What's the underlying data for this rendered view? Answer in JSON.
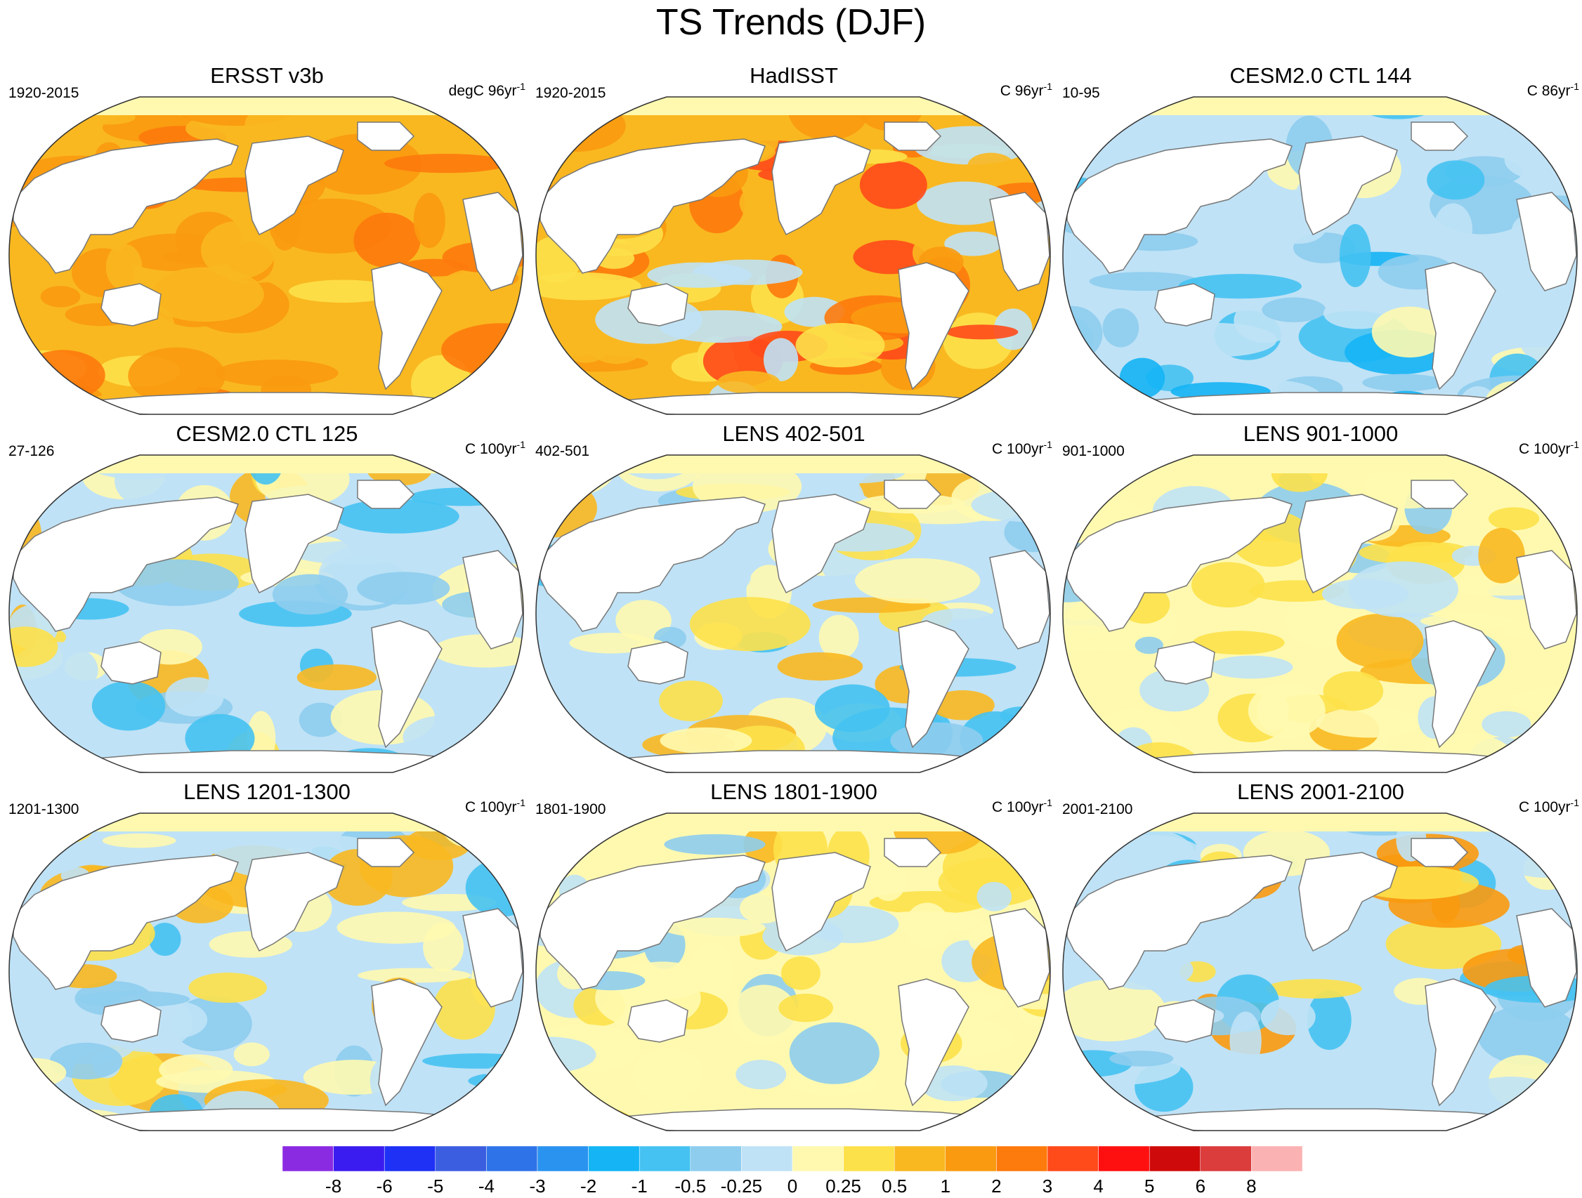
{
  "title": "TS Trends (DJF)",
  "panels": [
    {
      "title": "ERSST v3b",
      "period": "1920-2015",
      "unit": "degC 96yr",
      "unit_exp": "-1",
      "pattern": "warm"
    },
    {
      "title": "HadISST",
      "period": "1920-2015",
      "unit": "C 96yr",
      "unit_exp": "-1",
      "pattern": "warm2"
    },
    {
      "title": "CESM2.0 CTL 144",
      "period": "10-95",
      "unit": "C 86yr",
      "unit_exp": "-1",
      "pattern": "cool"
    },
    {
      "title": "CESM2.0 CTL 125",
      "period": "27-126",
      "unit": "C 100yr",
      "unit_exp": "-1",
      "pattern": "mixed"
    },
    {
      "title": "LENS 402-501",
      "period": "402-501",
      "unit": "C 100yr",
      "unit_exp": "-1",
      "pattern": "mixed"
    },
    {
      "title": "LENS 901-1000",
      "period": "901-1000",
      "unit": "C 100yr",
      "unit_exp": "-1",
      "pattern": "mixedwarm"
    },
    {
      "title": "LENS 1201-1300",
      "period": "1201-1300",
      "unit": "C 100yr",
      "unit_exp": "-1",
      "pattern": "mixed"
    },
    {
      "title": "LENS 1801-1900",
      "period": "1801-1900",
      "unit": "C 100yr",
      "unit_exp": "-1",
      "pattern": "mixedwarm"
    },
    {
      "title": "LENS 2001-2100",
      "period": "2001-2100",
      "unit": "C 100yr",
      "unit_exp": "-1",
      "pattern": "mixedcool"
    }
  ],
  "colorbar": {
    "colors": [
      "#8a2be2",
      "#3b1cf0",
      "#1f31f5",
      "#3b5ee0",
      "#2f73e8",
      "#2a93f0",
      "#14b4f5",
      "#45c2f2",
      "#8ecdee",
      "#bfe2f6",
      "#fff9b0",
      "#fde14a",
      "#f9b820",
      "#f99a10",
      "#fd7a0c",
      "#ff4a1a",
      "#ff1010",
      "#cf0a0a",
      "#db3c3c",
      "#fbb2b2"
    ],
    "labels": [
      "-8",
      "-6",
      "-5",
      "-4",
      "-3",
      "-2",
      "-1",
      "-0.5",
      "-0.25",
      "0",
      "0.25",
      "0.5",
      "1",
      "2",
      "3",
      "4",
      "5",
      "6",
      "8"
    ]
  }
}
